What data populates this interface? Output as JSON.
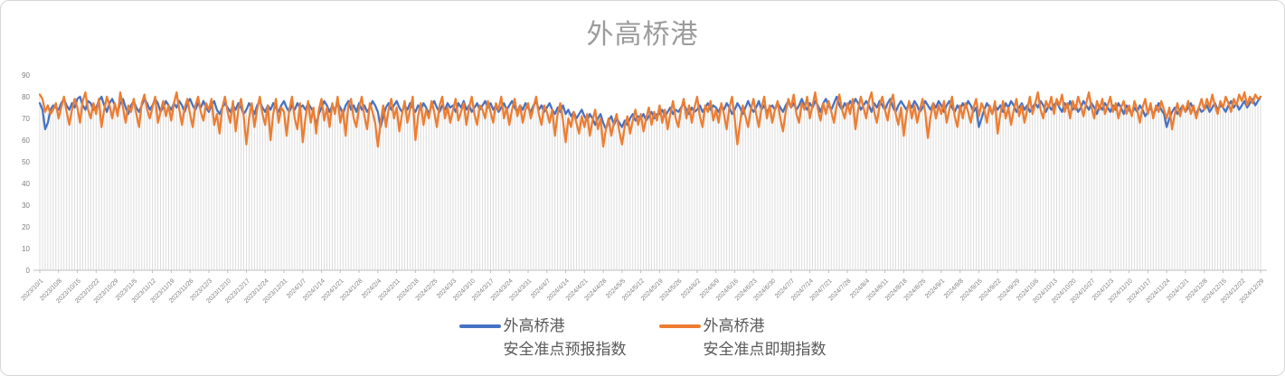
{
  "chart": {
    "style": {
      "forecast_color": "#4472C4",
      "spot_color": "#ED7D31",
      "drop_line_color": "#dcdcdc",
      "axis_line_color": "#bfbfbf",
      "tick_text_color": "#7f7f7f",
      "title_text_color": "#9b9b9b",
      "legend_text_color": "#595959"
    },
    "legend": {
      "items": [
        {
          "line1": "外高桥港",
          "line2": "安全准点预报指数",
          "color": "#4472C4"
        },
        {
          "line1": "外高桥港",
          "line2": "安全准点即期指数",
          "color": "#ED7D31"
        }
      ]
    }
  },
  "chart_data": {
    "type": "line",
    "title": "外高桥港",
    "xlabel": "",
    "ylabel": "",
    "ylim": [
      0,
      90
    ],
    "y_ticks": [
      0,
      10,
      20,
      30,
      40,
      50,
      60,
      70,
      80,
      90
    ],
    "grid": "vertical-drop-lines-per-point",
    "legend_position": "bottom",
    "n_points": 456,
    "x_start": "2023/10/1",
    "x_end": "2024/12/29",
    "x_tick_interval_days": 7,
    "x_tick_labels": [
      "2023/10/1",
      "2023/10/8",
      "2023/10/15",
      "2023/10/22",
      "2023/10/29",
      "2023/11/5",
      "2023/11/12",
      "2023/11/19",
      "2023/11/26",
      "2023/12/3",
      "2023/12/10",
      "2023/12/17",
      "2023/12/24",
      "2023/12/31",
      "2024/1/7",
      "2024/1/14",
      "2024/1/21",
      "2024/1/28",
      "2024/2/4",
      "2024/2/11",
      "2024/2/18",
      "2024/2/25",
      "2024/3/3",
      "2024/3/10",
      "2024/3/17",
      "2024/3/24",
      "2024/3/31",
      "2024/4/7",
      "2024/4/14",
      "2024/4/21",
      "2024/4/28",
      "2024/5/5",
      "2024/5/12",
      "2024/5/19",
      "2024/5/26",
      "2024/6/2",
      "2024/6/9",
      "2024/6/16",
      "2024/6/23",
      "2024/6/30",
      "2024/7/7",
      "2024/7/14",
      "2024/7/21",
      "2024/7/28",
      "2024/8/4",
      "2024/8/11",
      "2024/8/18",
      "2024/8/25",
      "2024/9/1",
      "2024/9/8",
      "2024/9/15",
      "2024/9/22",
      "2024/9/29",
      "2024/10/6",
      "2024/10/13",
      "2024/10/20",
      "2024/10/27",
      "2024/11/3",
      "2024/11/10",
      "2024/11/17",
      "2024/11/24",
      "2024/12/1",
      "2024/12/8",
      "2024/12/15",
      "2024/12/22",
      "2024/12/29"
    ],
    "series": [
      {
        "name": "外高桥港 安全准点预报指数",
        "color": "#4472C4",
        "values": [
          77,
          74,
          65,
          68,
          74,
          76,
          75,
          74,
          77,
          79,
          76,
          74,
          77,
          75,
          79,
          80,
          76,
          74,
          78,
          77,
          74,
          75,
          78,
          80,
          76,
          73,
          77,
          79,
          76,
          73,
          77,
          79,
          75,
          72,
          76,
          78,
          75,
          73,
          76,
          79,
          77,
          74,
          76,
          79,
          77,
          73,
          75,
          78,
          76,
          74,
          77,
          75,
          78,
          76,
          73,
          77,
          79,
          76,
          74,
          77,
          75,
          78,
          75,
          73,
          76,
          78,
          74,
          72,
          75,
          77,
          75,
          73,
          76,
          74,
          77,
          75,
          72,
          74,
          77,
          75,
          72,
          76,
          78,
          75,
          73,
          76,
          74,
          77,
          75,
          73,
          76,
          78,
          75,
          73,
          76,
          74,
          77,
          75,
          76,
          74,
          77,
          75,
          73,
          67,
          72,
          75,
          78,
          76,
          73,
          76,
          74,
          77,
          75,
          72,
          76,
          78,
          74,
          76,
          73,
          77,
          74,
          76,
          73,
          75,
          78,
          76,
          73,
          66,
          71,
          75,
          77,
          74,
          76,
          78,
          75,
          73,
          76,
          74,
          77,
          75,
          73,
          76,
          74,
          77,
          75,
          72,
          76,
          78,
          75,
          73,
          76,
          74,
          77,
          75,
          76,
          73,
          77,
          75,
          78,
          74,
          76,
          73,
          75,
          77,
          74,
          76,
          78,
          75,
          77,
          74,
          76,
          73,
          75,
          77,
          74,
          76,
          78,
          75,
          73,
          76,
          74,
          77,
          75,
          73,
          76,
          78,
          74,
          76,
          73,
          75,
          77,
          74,
          72,
          75,
          73,
          76,
          72,
          74,
          71,
          73,
          70,
          72,
          74,
          71,
          69,
          72,
          70,
          67,
          70,
          72,
          68,
          65,
          69,
          71,
          67,
          70,
          68,
          66,
          69,
          67,
          70,
          72,
          69,
          71,
          70,
          72,
          69,
          71,
          73,
          70,
          72,
          72,
          74,
          71,
          73,
          75,
          72,
          74,
          73,
          75,
          77,
          74,
          72,
          75,
          73,
          74,
          76,
          73,
          75,
          77,
          74,
          76,
          75,
          73,
          76,
          74,
          77,
          75,
          72,
          74,
          77,
          75,
          72,
          75,
          78,
          75,
          73,
          75,
          78,
          74,
          76,
          73,
          75,
          76,
          74,
          77,
          75,
          73,
          76,
          78,
          75,
          77,
          74,
          76,
          79,
          76,
          74,
          77,
          75,
          78,
          76,
          73,
          77,
          79,
          76,
          74,
          77,
          80,
          76,
          74,
          77,
          75,
          78,
          76,
          79,
          77,
          74,
          76,
          78,
          76,
          73,
          77,
          75,
          78,
          76,
          74,
          77,
          79,
          75,
          73,
          76,
          78,
          76,
          74,
          77,
          75,
          78,
          76,
          73,
          75,
          78,
          76,
          74,
          77,
          75,
          78,
          76,
          73,
          76,
          78,
          75,
          73,
          76,
          74,
          77,
          75,
          78,
          76,
          73,
          75,
          66,
          70,
          74,
          77,
          75,
          72,
          76,
          74,
          76,
          73,
          77,
          75,
          78,
          76,
          73,
          75,
          77,
          74,
          76,
          73,
          75,
          77,
          75,
          78,
          76,
          73,
          76,
          74,
          76,
          78,
          75,
          73,
          77,
          75,
          78,
          74,
          76,
          73,
          75,
          78,
          76,
          74,
          77,
          75,
          72,
          76,
          74,
          77,
          75,
          73,
          76,
          74,
          77,
          75,
          72,
          76,
          74,
          72,
          75,
          73,
          76,
          74,
          71,
          73,
          75,
          72,
          74,
          77,
          74,
          72,
          66,
          70,
          73,
          75,
          72,
          74,
          76,
          73,
          75,
          77,
          74,
          72,
          75,
          73,
          74,
          76,
          73,
          75,
          77,
          74,
          76,
          75,
          73,
          76,
          78,
          75,
          77,
          74,
          76,
          78,
          75,
          77,
          79,
          76,
          78,
          80
        ]
      },
      {
        "name": "外高桥港 安全准点即期指数",
        "color": "#ED7D31",
        "values": [
          81,
          79,
          73,
          76,
          72,
          74,
          77,
          70,
          75,
          80,
          73,
          67,
          74,
          79,
          75,
          68,
          78,
          82,
          74,
          70,
          77,
          72,
          79,
          66,
          74,
          80,
          76,
          70,
          77,
          71,
          82,
          75,
          68,
          76,
          73,
          79,
          72,
          66,
          77,
          81,
          74,
          70,
          75,
          80,
          68,
          73,
          78,
          71,
          76,
          69,
          77,
          82,
          74,
          67,
          75,
          79,
          72,
          66,
          76,
          80,
          73,
          69,
          77,
          74,
          79,
          67,
          72,
          63,
          75,
          80,
          73,
          68,
          78,
          64,
          74,
          79,
          71,
          58,
          70,
          77,
          66,
          74,
          80,
          72,
          67,
          76,
          60,
          72,
          79,
          68,
          75,
          73,
          62,
          74,
          80,
          70,
          65,
          77,
          59,
          70,
          78,
          68,
          75,
          63,
          74,
          79,
          69,
          75,
          66,
          77,
          72,
          80,
          68,
          74,
          62,
          76,
          79,
          70,
          66,
          75,
          80,
          71,
          65,
          77,
          73,
          68,
          57,
          68,
          76,
          66,
          74,
          79,
          70,
          75,
          64,
          72,
          78,
          68,
          74,
          80,
          60,
          71,
          77,
          67,
          74,
          70,
          78,
          73,
          66,
          76,
          80,
          70,
          75,
          68,
          74,
          79,
          69,
          73,
          77,
          67,
          75,
          80,
          72,
          67,
          76,
          74,
          70,
          78,
          73,
          68,
          77,
          74,
          80,
          70,
          75,
          67,
          74,
          79,
          71,
          76,
          68,
          74,
          77,
          70,
          75,
          80,
          72,
          67,
          76,
          73,
          68,
          74,
          62,
          72,
          77,
          69,
          59,
          70,
          66,
          73,
          68,
          63,
          71,
          66,
          72,
          62,
          69,
          74,
          65,
          70,
          57,
          65,
          70,
          62,
          68,
          72,
          64,
          58,
          66,
          71,
          63,
          69,
          74,
          67,
          72,
          64,
          70,
          75,
          67,
          73,
          69,
          76,
          68,
          74,
          65,
          72,
          78,
          70,
          66,
          74,
          79,
          70,
          76,
          68,
          75,
          80,
          71,
          66,
          76,
          73,
          78,
          69,
          74,
          68,
          77,
          72,
          65,
          75,
          80,
          70,
          58,
          68,
          76,
          71,
          66,
          74,
          79,
          72,
          66,
          75,
          80,
          70,
          76,
          68,
          74,
          78,
          70,
          64,
          73,
          79,
          75,
          81,
          72,
          68,
          77,
          74,
          80,
          70,
          76,
          82,
          74,
          69,
          77,
          72,
          78,
          73,
          68,
          76,
          81,
          74,
          70,
          77,
          72,
          79,
          65,
          74,
          80,
          75,
          70,
          78,
          82,
          73,
          68,
          76,
          80,
          74,
          69,
          77,
          81,
          72,
          67,
          75,
          62,
          72,
          78,
          70,
          76,
          68,
          74,
          79,
          73,
          61,
          71,
          77,
          70,
          76,
          72,
          78,
          68,
          74,
          80,
          71,
          66,
          76,
          70,
          77,
          73,
          68,
          75,
          79,
          71,
          77,
          74,
          68,
          76,
          72,
          78,
          63,
          72,
          78,
          70,
          75,
          67,
          74,
          79,
          71,
          76,
          68,
          74,
          80,
          72,
          77,
          82,
          74,
          70,
          78,
          75,
          80,
          72,
          79,
          76,
          81,
          73,
          77,
          70,
          78,
          74,
          80,
          76,
          71,
          77,
          82,
          75,
          70,
          78,
          74,
          79,
          72,
          76,
          80,
          73,
          77,
          70,
          75,
          78,
          72,
          76,
          71,
          78,
          74,
          68,
          75,
          79,
          72,
          77,
          70,
          76,
          73,
          78,
          74,
          70,
          75,
          65,
          72,
          77,
          71,
          76,
          73,
          78,
          72,
          76,
          70,
          75,
          79,
          74,
          79,
          75,
          81,
          76,
          72,
          78,
          75,
          80,
          77,
          73,
          79,
          76,
          81,
          78,
          82,
          76,
          80,
          77,
          81,
          79,
          80
        ]
      }
    ]
  }
}
